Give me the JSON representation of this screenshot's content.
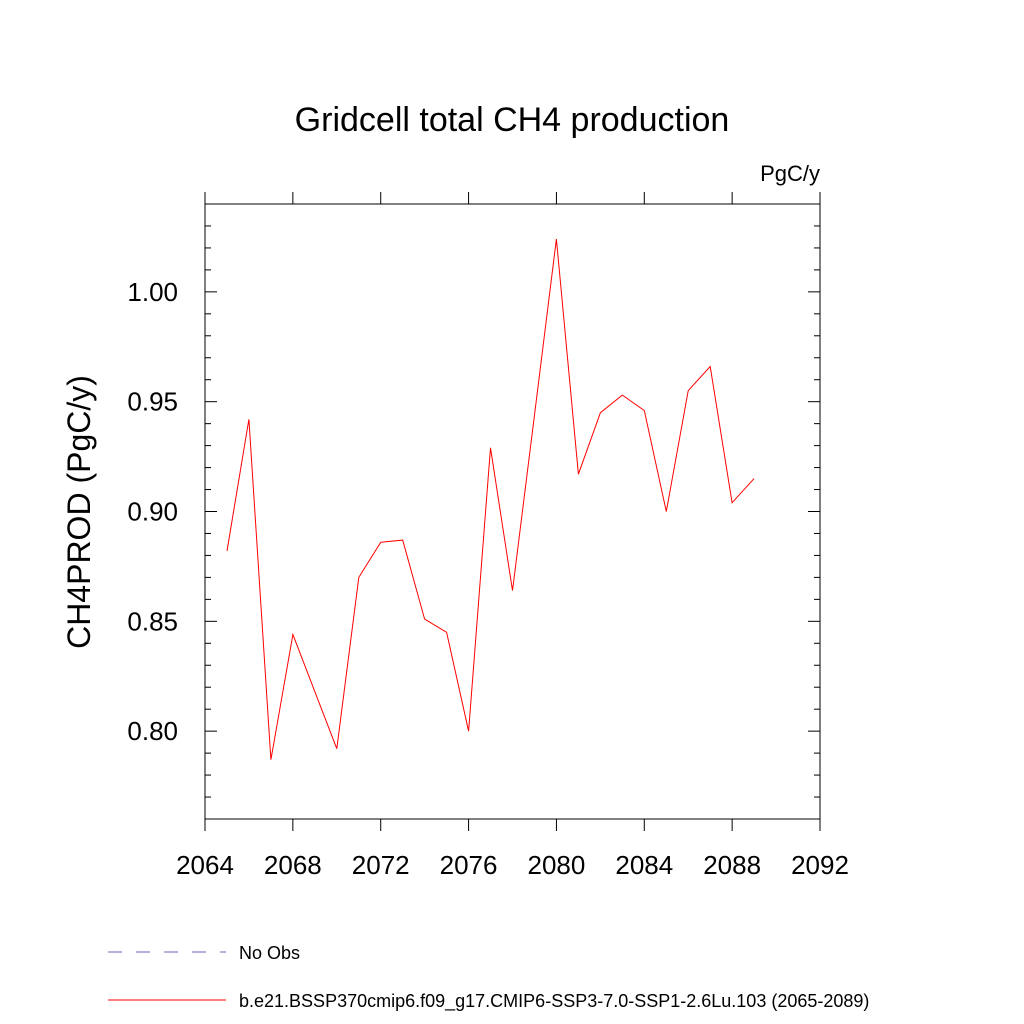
{
  "chart_data": {
    "type": "line",
    "title": "Gridcell total CH4 production",
    "units": "PgC/y",
    "xlabel": "",
    "ylabel": "CH4PROD  (PgC/y)",
    "xlim": [
      2064,
      2092
    ],
    "ylim": [
      0.76,
      1.04
    ],
    "x_ticks": [
      2064,
      2068,
      2072,
      2076,
      2080,
      2084,
      2088,
      2092
    ],
    "y_ticks": [
      0.8,
      0.85,
      0.9,
      0.95,
      1.0
    ],
    "y_tick_labels": [
      "0.80",
      "0.85",
      "0.90",
      "0.95",
      "1.00"
    ],
    "series": [
      {
        "name": "b.e21.BSSP370cmip6.f09_g17.CMIP6-SSP3-7.0-SSP1-2.6Lu.103 (2065-2089)",
        "color": "#ff0000",
        "x": [
          2065,
          2066,
          2067,
          2068,
          2069,
          2070,
          2071,
          2072,
          2073,
          2074,
          2075,
          2076,
          2077,
          2078,
          2079,
          2080,
          2081,
          2082,
          2083,
          2084,
          2085,
          2086,
          2087,
          2088,
          2089
        ],
        "values": [
          0.882,
          0.942,
          0.787,
          0.844,
          0.818,
          0.792,
          0.87,
          0.886,
          0.887,
          0.851,
          0.845,
          0.8,
          0.929,
          0.864,
          0.944,
          1.024,
          0.917,
          0.945,
          0.953,
          0.946,
          0.9,
          0.955,
          0.966,
          0.904,
          0.915
        ]
      }
    ],
    "legend": [
      {
        "label": "No Obs",
        "color": "#6666bb",
        "style": "dashed"
      },
      {
        "label": "b.e21.BSSP370cmip6.f09_g17.CMIP6-SSP3-7.0-SSP1-2.6Lu.103 (2065-2089)",
        "color": "#ff0000",
        "style": "solid"
      }
    ],
    "legend_position": "bottom"
  }
}
